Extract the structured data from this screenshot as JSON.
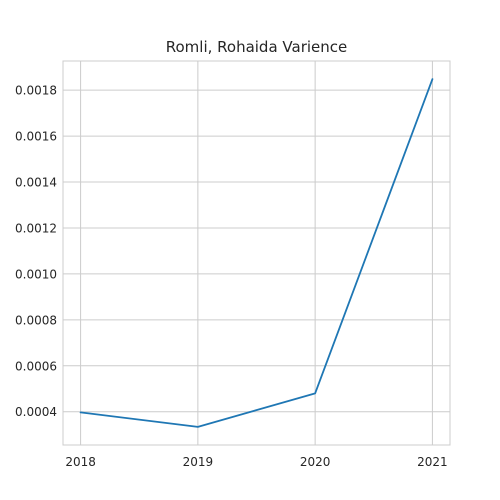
{
  "chart_data": {
    "type": "line",
    "title": "Romli, Rohaida Varience",
    "xlabel": "",
    "ylabel": "",
    "x": [
      "2018",
      "2019",
      "2020",
      "2021"
    ],
    "series": [
      {
        "values": [
          0.000397,
          0.000334,
          0.00048,
          0.001848
        ]
      }
    ],
    "xlim": [
      2017.85,
      2021.15
    ],
    "ylim": [
      0.000255,
      0.001927
    ],
    "yticks": [
      "0.0004",
      "0.0006",
      "0.0008",
      "0.0010",
      "0.0012",
      "0.0014",
      "0.0016",
      "0.0018"
    ],
    "ytick_values": [
      0.0004,
      0.0006,
      0.0008,
      0.001,
      0.0012,
      0.0014,
      0.0016,
      0.0018
    ],
    "grid": true,
    "legend": "none",
    "colors": {
      "line": "#1f77b4",
      "grid": "#cccccc",
      "text": "#262626"
    }
  }
}
